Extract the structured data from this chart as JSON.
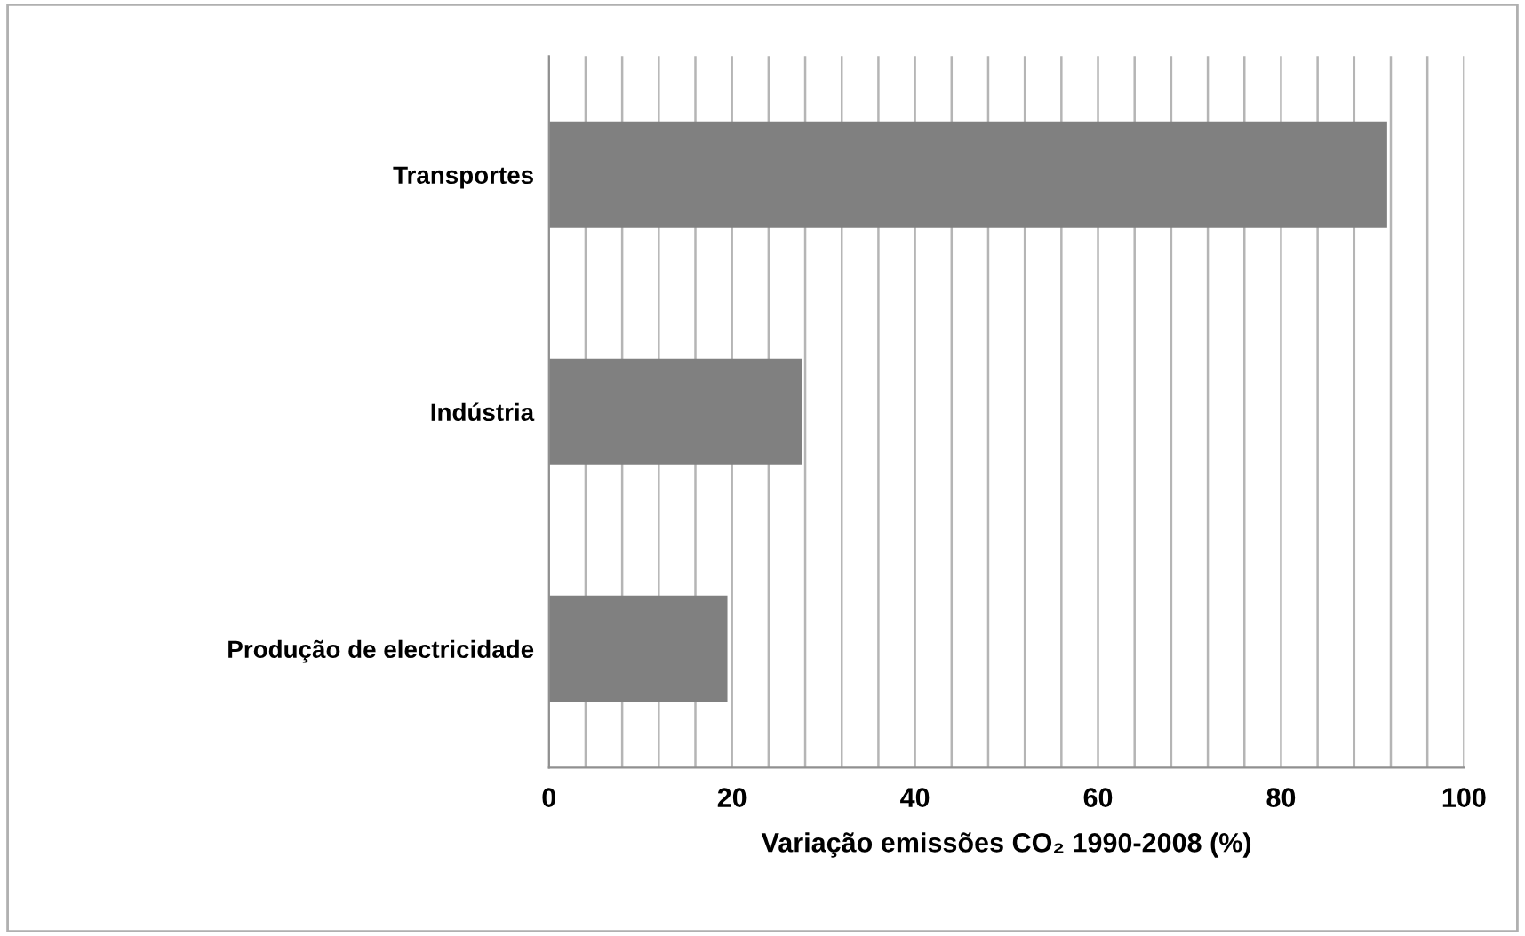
{
  "chart_data": {
    "type": "bar",
    "orientation": "horizontal",
    "categories": [
      "Transportes",
      "Indústria",
      "Produção de electricidade"
    ],
    "values": [
      91.6,
      27.7,
      19.5
    ],
    "color": "#808080",
    "xlabel": "Variação emissões CO₂ 1990-2008 (%)",
    "xlim": [
      0,
      100
    ],
    "xticks": [
      0,
      {
        "value": 4,
        "label": null
      },
      {
        "value": 8,
        "label": null
      },
      {
        "value": 12,
        "label": null
      },
      {
        "value": 16,
        "label": null
      },
      20,
      {
        "value": 24,
        "label": null
      },
      {
        "value": 28,
        "label": null
      },
      {
        "value": 32,
        "label": null
      },
      {
        "value": 36,
        "label": null
      },
      40,
      {
        "value": 44,
        "label": null
      },
      {
        "value": 48,
        "label": null
      },
      {
        "value": 52,
        "label": null
      },
      {
        "value": 56,
        "label": null
      },
      60,
      {
        "value": 64,
        "label": null
      },
      {
        "value": 68,
        "label": null
      },
      {
        "value": 72,
        "label": null
      },
      {
        "value": 76,
        "label": null
      },
      80,
      {
        "value": 84,
        "label": null
      },
      {
        "value": 88,
        "label": null
      },
      {
        "value": 92,
        "label": null
      },
      {
        "value": 96,
        "label": null
      },
      100
    ],
    "grid": "x"
  }
}
